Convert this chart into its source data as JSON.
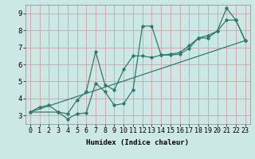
{
  "xlabel": "Humidex (Indice chaleur)",
  "bg_color": "#cce8e4",
  "line_color": "#2e7b6e",
  "grid_color": "#d4a0a8",
  "line1_x": [
    0,
    1,
    2,
    3,
    4,
    5,
    6,
    7,
    8,
    9,
    10,
    11,
    12,
    13,
    14,
    15,
    16,
    17,
    18,
    19,
    20,
    21,
    22,
    23
  ],
  "line1_y": [
    3.2,
    3.5,
    3.6,
    3.2,
    2.8,
    3.1,
    3.15,
    4.9,
    4.4,
    3.6,
    3.7,
    4.5,
    8.25,
    8.25,
    6.55,
    6.55,
    6.6,
    6.95,
    7.55,
    7.55,
    7.95,
    9.3,
    8.6,
    7.4
  ],
  "line2_x": [
    0,
    3,
    4,
    5,
    6,
    7,
    8,
    9,
    10,
    11,
    12,
    13,
    14,
    15,
    16,
    17,
    18,
    19,
    20,
    21,
    22,
    23
  ],
  "line2_y": [
    3.2,
    3.2,
    3.1,
    3.9,
    4.4,
    6.75,
    4.8,
    4.5,
    5.7,
    6.5,
    6.5,
    6.4,
    6.55,
    6.6,
    6.7,
    7.1,
    7.55,
    7.7,
    7.95,
    8.6,
    8.6,
    7.4
  ],
  "line3_x": [
    0,
    23
  ],
  "line3_y": [
    3.2,
    7.4
  ],
  "xlim": [
    -0.5,
    23.5
  ],
  "ylim": [
    2.5,
    9.5
  ],
  "xtick_labels": [
    "0",
    "1",
    "2",
    "3",
    "4",
    "5",
    "6",
    "7",
    "8",
    "9",
    "10",
    "11",
    "12",
    "13",
    "14",
    "15",
    "16",
    "17",
    "18",
    "19",
    "20",
    "21",
    "22",
    "23"
  ],
  "ytick_labels": [
    "3",
    "4",
    "5",
    "6",
    "7",
    "8",
    "9"
  ],
  "ytick_vals": [
    3,
    4,
    5,
    6,
    7,
    8,
    9
  ],
  "fontsize_axis": 6.5,
  "fontsize_tick": 6.0
}
